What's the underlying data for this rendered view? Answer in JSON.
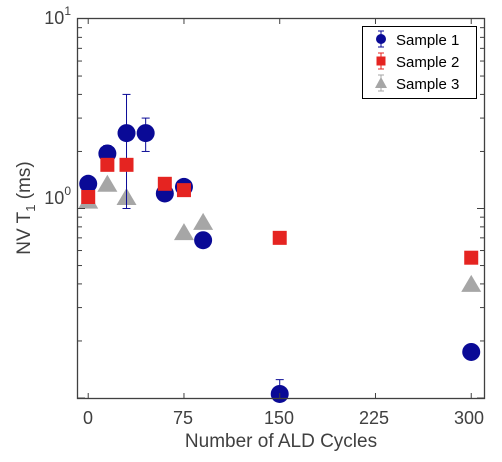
{
  "chart_data": {
    "type": "scatter",
    "xlabel": "Number of ALD Cycles",
    "ylabel_main": "NV T",
    "ylabel_sub": "1",
    "ylabel_unit": " (ms)",
    "xlim": [
      -8,
      310
    ],
    "ylim": [
      0.1,
      10
    ],
    "yscale": "log",
    "x_ticks": [
      0,
      75,
      150,
      225,
      300
    ],
    "x_tick_labels": [
      "0",
      "75",
      "150",
      "225",
      "300"
    ],
    "y_tick_labels": {
      "major_1": {
        "base": "10",
        "exp": "0"
      },
      "major_2": {
        "base": "10",
        "exp": "1"
      }
    },
    "grid": false,
    "legend_position": "top-right",
    "series": [
      {
        "name": "Sample 1",
        "marker": "circle",
        "color": "#0a0a96",
        "points": [
          {
            "x": 0,
            "y": 1.35,
            "err": 0
          },
          {
            "x": 15,
            "y": 1.95,
            "err": 0.2
          },
          {
            "x": 30,
            "y": 2.5,
            "err": 1.5
          },
          {
            "x": 45,
            "y": 2.5,
            "err": 0.5
          },
          {
            "x": 60,
            "y": 1.2,
            "err": 0
          },
          {
            "x": 75,
            "y": 1.3,
            "err": 0
          },
          {
            "x": 90,
            "y": 0.68,
            "err": 0
          },
          {
            "x": 150,
            "y": 0.105,
            "err": 0.02
          },
          {
            "x": 300,
            "y": 0.175,
            "err": 0
          }
        ]
      },
      {
        "name": "Sample 2",
        "marker": "square",
        "color": "#e52421",
        "points": [
          {
            "x": 0,
            "y": 1.15,
            "err": 0
          },
          {
            "x": 15,
            "y": 1.7,
            "err": 0
          },
          {
            "x": 30,
            "y": 1.7,
            "err": 0
          },
          {
            "x": 60,
            "y": 1.35,
            "err": 0
          },
          {
            "x": 75,
            "y": 1.25,
            "err": 0
          },
          {
            "x": 150,
            "y": 0.7,
            "err": 0
          },
          {
            "x": 300,
            "y": 0.55,
            "err": 0
          }
        ]
      },
      {
        "name": "Sample 3",
        "marker": "triangle",
        "color": "#a6a6a6",
        "points": [
          {
            "x": 0,
            "y": 1.1,
            "err": 0
          },
          {
            "x": 15,
            "y": 1.35,
            "err": 0
          },
          {
            "x": 30,
            "y": 1.15,
            "err": 0
          },
          {
            "x": 75,
            "y": 0.75,
            "err": 0
          },
          {
            "x": 90,
            "y": 0.85,
            "err": 0
          },
          {
            "x": 300,
            "y": 0.4,
            "err": 0
          }
        ]
      }
    ]
  }
}
